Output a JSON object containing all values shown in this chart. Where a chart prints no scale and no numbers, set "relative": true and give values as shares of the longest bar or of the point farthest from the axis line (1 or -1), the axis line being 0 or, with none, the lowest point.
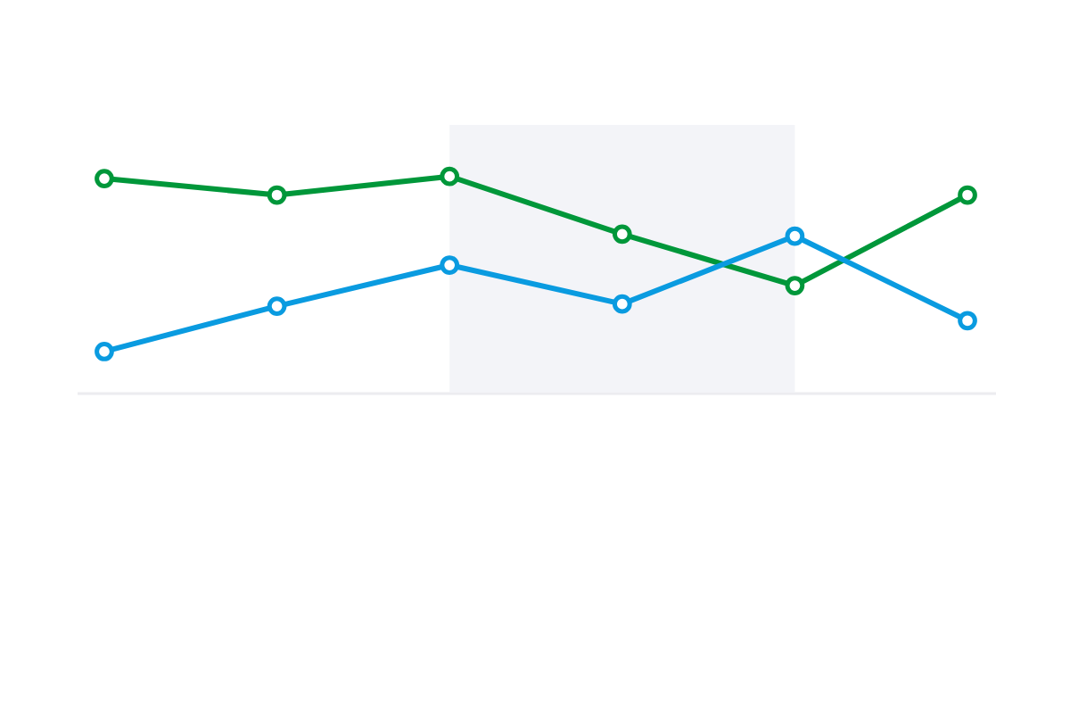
{
  "chart_data": {
    "type": "line",
    "relative": true,
    "categories": [
      null,
      null,
      null,
      null,
      null,
      null
    ],
    "series": [
      {
        "color": "#00973a",
        "values": [
          0.99,
          0.914,
          1.0,
          0.733,
          0.495,
          0.914
        ]
      },
      {
        "color": "#0a9be0",
        "values": [
          0.19,
          0.4,
          0.59,
          0.41,
          0.724,
          0.333
        ]
      }
    ],
    "marker": "circle",
    "line_style": "solid",
    "tick_labels": false
  }
}
